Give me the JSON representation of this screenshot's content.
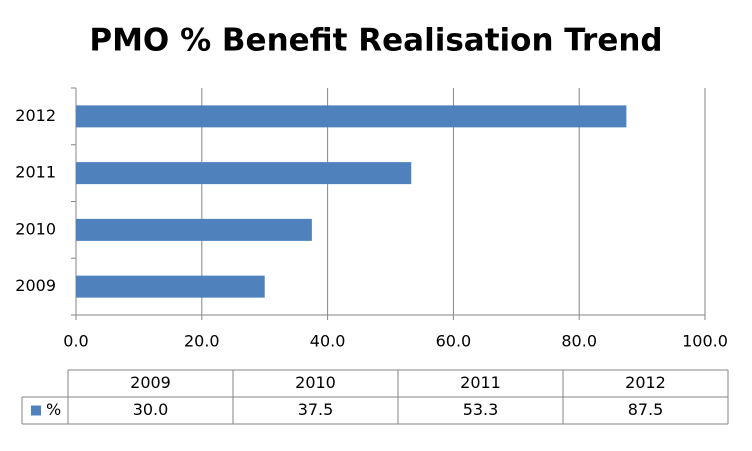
{
  "chart_data": {
    "type": "bar",
    "orientation": "horizontal",
    "title": "PMO % Benefit Realisation Trend",
    "categories": [
      "2009",
      "2010",
      "2011",
      "2012"
    ],
    "series": [
      {
        "name": "%",
        "color": "#4f81bd",
        "values": [
          30.0,
          37.5,
          53.3,
          87.5
        ],
        "value_labels": [
          "30.0",
          "37.5",
          "53.3",
          "87.5"
        ]
      }
    ],
    "xlim": [
      0,
      100
    ],
    "xticks": [
      {
        "value": 0,
        "label": "0.0"
      },
      {
        "value": 20,
        "label": "20.0"
      },
      {
        "value": 40,
        "label": "40.0"
      },
      {
        "value": 60,
        "label": "60.0"
      },
      {
        "value": 80,
        "label": "80.0"
      },
      {
        "value": 100,
        "label": "100.0"
      }
    ],
    "grid": true,
    "data_table": true
  }
}
